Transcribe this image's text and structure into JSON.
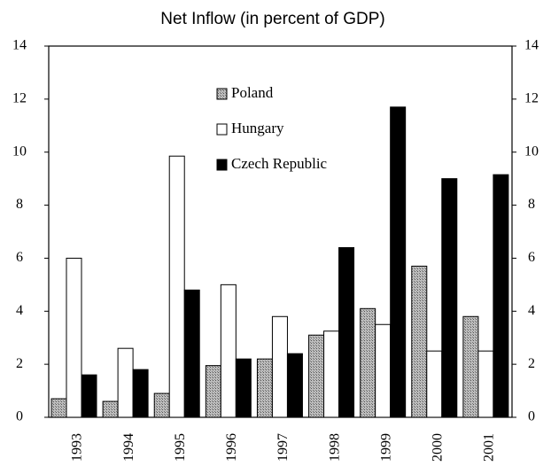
{
  "chart_data": {
    "type": "bar",
    "title": "Net Inflow (in percent of GDP)",
    "categories": [
      "1993",
      "1994",
      "1995",
      "1996",
      "1997",
      "1998",
      "1999",
      "2000",
      "2001"
    ],
    "series": [
      {
        "name": "Poland",
        "color": "#9a9a9a",
        "values": [
          0.7,
          0.6,
          0.9,
          1.95,
          2.2,
          3.1,
          4.1,
          5.7,
          3.8
        ]
      },
      {
        "name": "Hungary",
        "color": "#ffffff",
        "values": [
          6.0,
          2.6,
          9.85,
          5.0,
          3.8,
          3.25,
          3.5,
          2.5,
          2.5
        ]
      },
      {
        "name": "Czech Republic",
        "color": "#000000",
        "values": [
          1.6,
          1.8,
          4.8,
          2.2,
          2.4,
          6.4,
          11.7,
          9.0,
          9.15
        ]
      }
    ],
    "ylim": [
      0,
      14
    ],
    "yticks": [
      0,
      2,
      4,
      6,
      8,
      10,
      12,
      14
    ],
    "grid": false
  }
}
